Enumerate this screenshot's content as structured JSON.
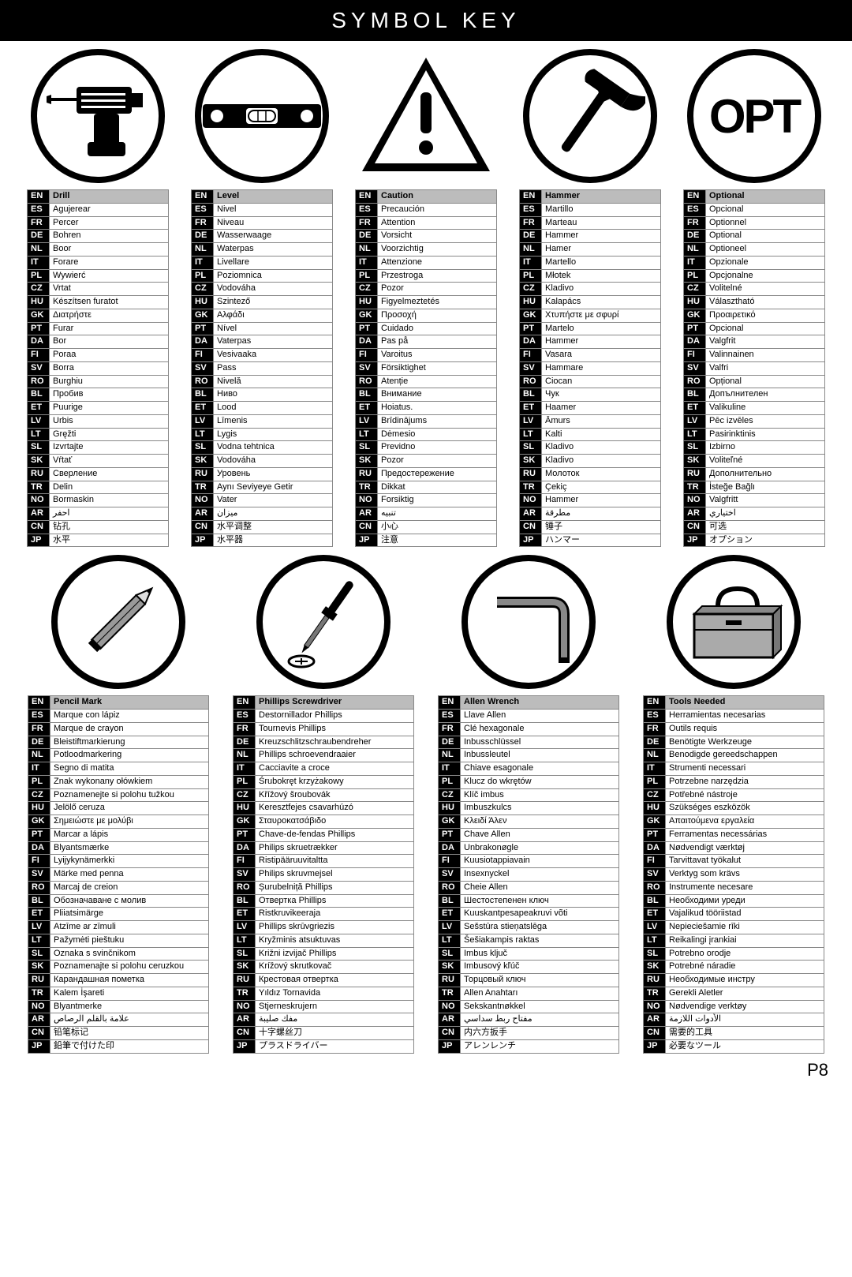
{
  "title": "SYMBOL KEY",
  "page": "P8",
  "langs": [
    "EN",
    "ES",
    "FR",
    "DE",
    "NL",
    "IT",
    "PL",
    "CZ",
    "HU",
    "GK",
    "PT",
    "DA",
    "FI",
    "SV",
    "RO",
    "BL",
    "ET",
    "LV",
    "LT",
    "SL",
    "SK",
    "RU",
    "TR",
    "NO",
    "AR",
    "CN",
    "JP"
  ],
  "top": [
    {
      "icon": "drill",
      "terms": [
        "Drill",
        "Agujerear",
        "Percer",
        "Bohren",
        "Boor",
        "Forare",
        "Wywierć",
        "Vrtat",
        "Készítsen furatot",
        "Διατρήστε",
        "Furar",
        "Bor",
        "Poraa",
        "Borra",
        "Burghiu",
        "Пробив",
        "Puurige",
        "Urbis",
        "Gręžti",
        "Izvrtajte",
        "Vŕtať",
        "Сверление",
        "Delin",
        "Bormaskin",
        "احفر",
        "钻孔",
        "水平"
      ]
    },
    {
      "icon": "level",
      "terms": [
        "Level",
        "Nivel",
        "Niveau",
        "Wasserwaage",
        "Waterpas",
        "Livellare",
        "Poziomnica",
        "Vodováha",
        "Szintező",
        "Αλφάδι",
        "Nível",
        "Vaterpas",
        "Vesivaaka",
        "Pass",
        "Nivelă",
        "Ниво",
        "Lood",
        "Līmenis",
        "Lygis",
        "Vodna tehtnica",
        "Vodováha",
        "Уровень",
        "Aynı Seviyeye Getir",
        "Vater",
        "ميزان",
        "水平调整",
        "水平器"
      ]
    },
    {
      "icon": "caution",
      "terms": [
        "Caution",
        "Precaución",
        "Attention",
        "Vorsicht",
        "Voorzichtig",
        "Attenzione",
        "Przestroga",
        "Pozor",
        "Figyelmeztetés",
        "Προσοχή",
        "Cuidado",
        "Pas på",
        "Varoitus",
        "Försiktighet",
        "Atenție",
        "Внимание",
        "Hoiatus.",
        "Brīdinājums",
        "Dėmesio",
        "Previdno",
        "Pozor",
        "Предостережение",
        "Dikkat",
        "Forsiktig",
        "تنبيه",
        "小心",
        "注意"
      ]
    },
    {
      "icon": "hammer",
      "terms": [
        "Hammer",
        "Martillo",
        "Marteau",
        "Hammer",
        "Hamer",
        "Martello",
        "Młotek",
        "Kladivo",
        "Kalapács",
        "Χτυπήστε με σφυρί",
        "Martelo",
        "Hammer",
        "Vasara",
        "Hammare",
        "Ciocan",
        "Чук",
        "Haamer",
        "Āmurs",
        "Kalti",
        "Kladivo",
        "Kladivo",
        "Молоток",
        "Çekiç",
        "Hammer",
        "مطرقة",
        "锤子",
        "ハンマー"
      ]
    },
    {
      "icon": "opt",
      "terms": [
        "Optional",
        "Opcional",
        "Optionnel",
        "Optional",
        "Optioneel",
        "Opzionale",
        "Opcjonalne",
        "Volitelné",
        "Választható",
        "Προαιρετικό",
        "Opcional",
        "Valgfrit",
        "Valinnainen",
        "Valfri",
        "Opțional",
        "Допълнителен",
        "Valikuline",
        "Pēc izvēles",
        "Pasirinktinis",
        "Izbirno",
        "Voliteľné",
        "Дополнительно",
        "İsteğe Bağlı",
        "Valgfritt",
        "اختياري",
        "可选",
        "オプション"
      ]
    }
  ],
  "bottom": [
    {
      "icon": "pencil",
      "terms": [
        "Pencil Mark",
        "Marque con lápiz",
        "Marque de crayon",
        "Bleistiftmarkierung",
        "Potloodmarkering",
        "Segno di matita",
        "Znak wykonany ołówkiem",
        "Poznamenejte si polohu tužkou",
        "Jelölő ceruza",
        "Σημειώστε με μολύβι",
        "Marcar a lápis",
        "Blyantsmærke",
        "Lyijykynämerkki",
        "Märke med penna",
        "Marcaj de creion",
        "Обозначаване с молив",
        "Pliiatsimärge",
        "Atzīme ar zīmuli",
        "Pažymėti pieštuku",
        "Oznaka s svinčnikom",
        "Poznamenajte si polohu ceruzkou",
        "Карандашная пометка",
        "Kalem İşareti",
        "Blyantmerke",
        "علامة بالقلم الرصاص",
        "铅笔标记",
        "鉛筆で付けた印"
      ]
    },
    {
      "icon": "phillips",
      "terms": [
        "Phillips Screwdriver",
        "Destornillador Phillips",
        "Tournevis Phillips",
        "Kreuzschlitzschraubendreher",
        "Phillips schroevendraaier",
        "Cacciavite a croce",
        "Śrubokręt krzyżakowy",
        "Křížový šroubovák",
        "Keresztfejes csavarhúzó",
        "Σταυροκατσάβιδο",
        "Chave-de-fendas Phillips",
        "Philips skruetrækker",
        "Ristipääruuvitaltta",
        "Philips skruvmejsel",
        "Șurubelniță Phillips",
        "Отвертка Phillips",
        "Ristkruvikeeraja",
        "Phillips skrūvgriezis",
        "Kryžminis atsuktuvas",
        "Križni izvijač Phillips",
        "Krížový skrutkovač",
        "Крестовая отвертка",
        "Yıldız Tornavida",
        "Stjerneskrujern",
        "مفك صليبة",
        "十字螺丝刀",
        "プラスドライバー"
      ]
    },
    {
      "icon": "allen",
      "terms": [
        "Allen Wrench",
        "Llave Allen",
        "Clé hexagonale",
        "Inbusschlüssel",
        "Inbussleutel",
        "Chiave esagonale",
        "Klucz do wkrętów",
        "Klíč imbus",
        "Imbuszkulcs",
        "Κλειδί Άλεν",
        "Chave Allen",
        "Unbrakonøgle",
        "Kuusiotappiavain",
        "Insexnyckel",
        "Cheie Allen",
        "Шестостепенен ключ",
        "Kuuskantpesapeakruvi võti",
        "Sešstūra stieņatslēga",
        "Šešiakampis raktas",
        "Imbus ključ",
        "Imbusový kľúč",
        "Торцовый ключ",
        "Allen Anahtarı",
        "Sekskantnøkkel",
        "مفتاح ربط سداسي",
        "内六方扳手",
        "アレンレンチ"
      ]
    },
    {
      "icon": "toolbox",
      "terms": [
        "Tools Needed",
        "Herramientas necesarias",
        "Outils requis",
        "Benötigte Werkzeuge",
        "Benodigde gereedschappen",
        "Strumenti necessari",
        "Potrzebne narzędzia",
        "Potřebné nástroje",
        "Szükséges eszközök",
        "Απαιτούμενα εργαλεία",
        "Ferramentas necessárias",
        "Nødvendigt værktøj",
        "Tarvittavat työkalut",
        "Verktyg som krävs",
        "Instrumente necesare",
        "Необходими уреди",
        "Vajalikud tööriistad",
        "Nepieciešamie rīki",
        "Reikalingi įrankiai",
        "Potrebno orodje",
        "Potrebné náradie",
        "Необходимые инстру",
        "Gerekli Aletler",
        "Nødvendige verktøy",
        "الأدوات اللازمة",
        "需要的工具",
        "必要なツール"
      ]
    }
  ]
}
